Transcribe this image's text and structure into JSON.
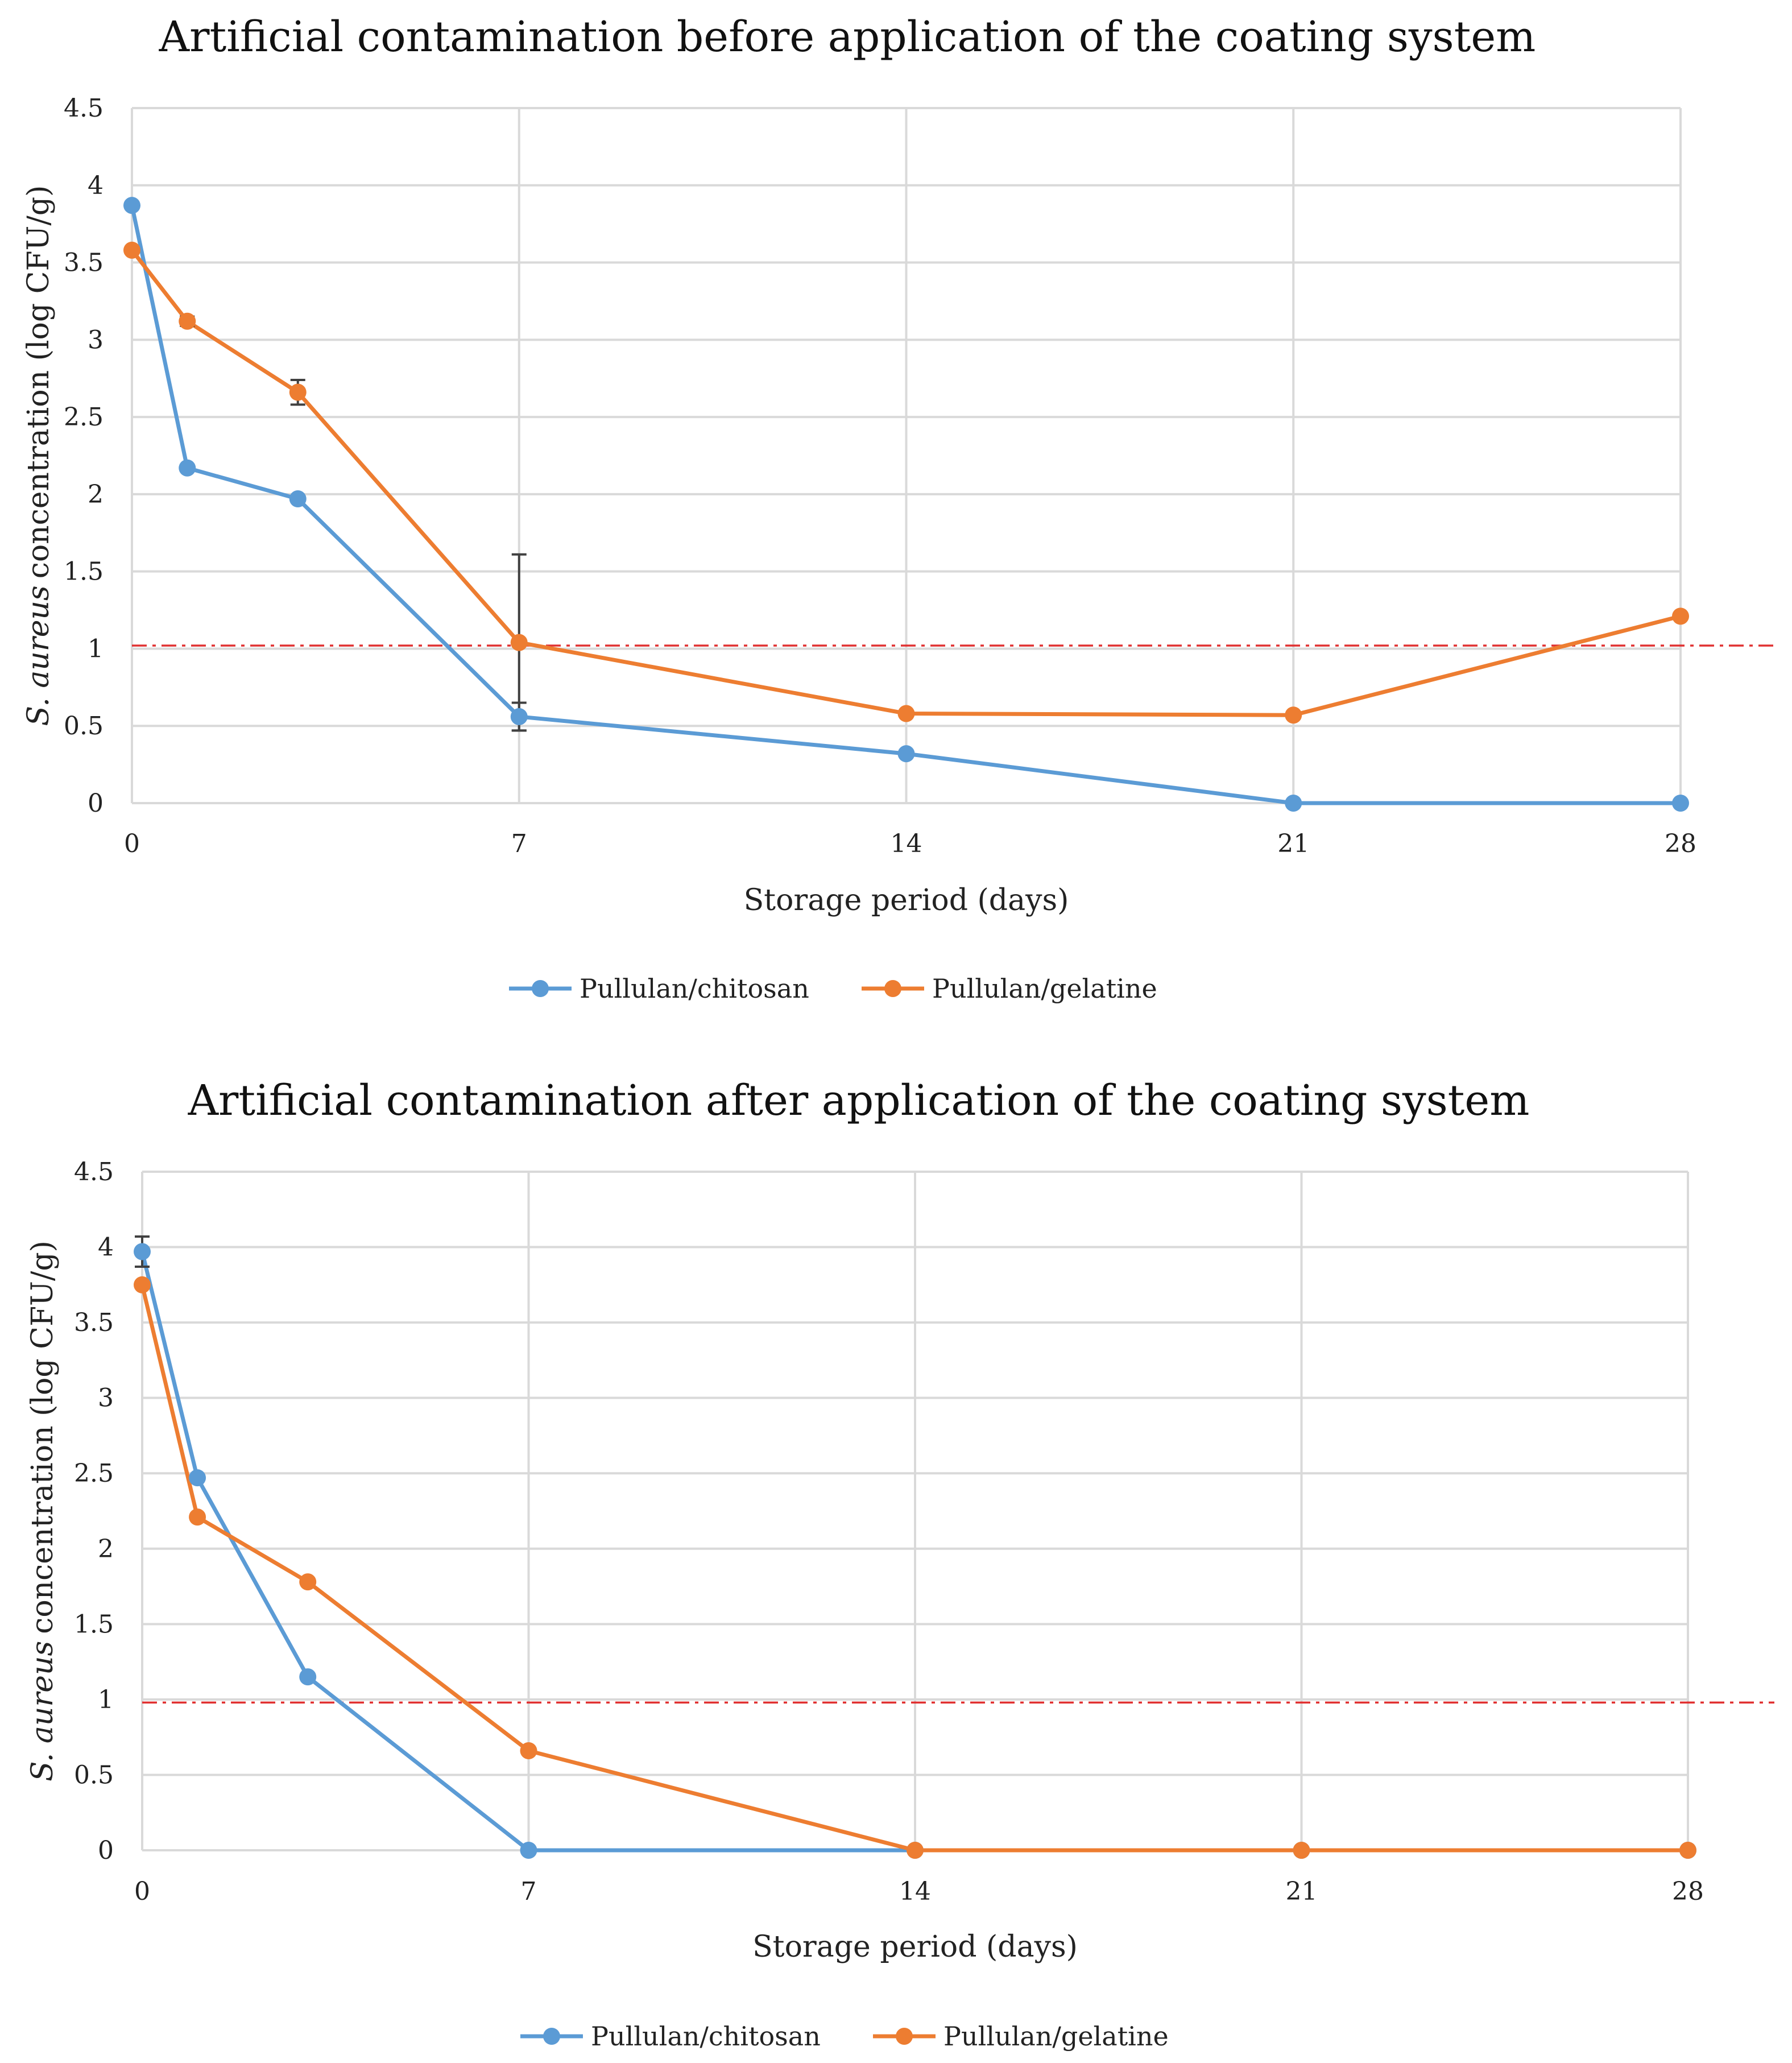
{
  "chart_data": [
    {
      "type": "line",
      "title": "Artificial contamination before application of the coating system",
      "xlabel": "Storage period (days)",
      "ylabel_italic": "S. aureus",
      "ylabel_rest": "concentration (log CFU/g)",
      "x_ticks": [
        0,
        7,
        14,
        21,
        28
      ],
      "y_ticks": [
        "0",
        "0.5",
        "1",
        "1.5",
        "2",
        "2.5",
        "3",
        "3.5",
        "4",
        "4.5"
      ],
      "xlim": [
        0,
        28
      ],
      "ylim": [
        0,
        4.5
      ],
      "grid": true,
      "legend_position": "bottom-center",
      "threshold": 1.02,
      "series": [
        {
          "name": "Pullulan/chitosan",
          "color": "#5B9BD5",
          "x": [
            0,
            1,
            3,
            7,
            14,
            21,
            28
          ],
          "values": [
            3.87,
            2.17,
            1.97,
            0.56,
            0.32,
            0,
            0
          ],
          "errors": [
            0,
            0,
            0,
            0.09,
            0,
            0,
            0
          ]
        },
        {
          "name": "Pullulan/gelatine",
          "color": "#ED7D31",
          "x": [
            0,
            1,
            3,
            7,
            14,
            21,
            28
          ],
          "values": [
            3.58,
            3.12,
            2.66,
            1.04,
            0.58,
            0.57,
            1.21
          ],
          "errors": [
            0,
            0.03,
            0.08,
            0.57,
            0,
            0,
            0
          ]
        }
      ]
    },
    {
      "type": "line",
      "title": "Artificial contamination after application of the coating system",
      "xlabel": "Storage period (days)",
      "ylabel_italic": "S. aureus",
      "ylabel_rest": "concentration (log CFU/g)",
      "x_ticks": [
        0,
        7,
        14,
        21,
        28
      ],
      "y_ticks": [
        "0",
        "0.5",
        "1",
        "1.5",
        "2",
        "2.5",
        "3",
        "3.5",
        "4",
        "4.5"
      ],
      "xlim": [
        0,
        28
      ],
      "ylim": [
        0,
        4.5
      ],
      "grid": true,
      "legend_position": "bottom-center",
      "threshold": 0.98,
      "series": [
        {
          "name": "Pullulan/chitosan",
          "color": "#5B9BD5",
          "x": [
            0,
            1,
            3,
            7,
            14,
            21,
            28
          ],
          "values": [
            3.97,
            2.47,
            1.15,
            0,
            0,
            0,
            0
          ],
          "errors": [
            0.1,
            0,
            0,
            0,
            0,
            0,
            0
          ]
        },
        {
          "name": "Pullulan/gelatine",
          "color": "#ED7D31",
          "x": [
            0,
            1,
            3,
            7,
            14,
            21,
            28
          ],
          "values": [
            3.75,
            2.21,
            1.78,
            0.66,
            0,
            0,
            0
          ],
          "errors": [
            0,
            0,
            0,
            0,
            0,
            0,
            0
          ]
        }
      ]
    }
  ],
  "colors": {
    "grid": "#D9D9D9",
    "threshold": "#E03030",
    "error_bar": "#404040"
  }
}
